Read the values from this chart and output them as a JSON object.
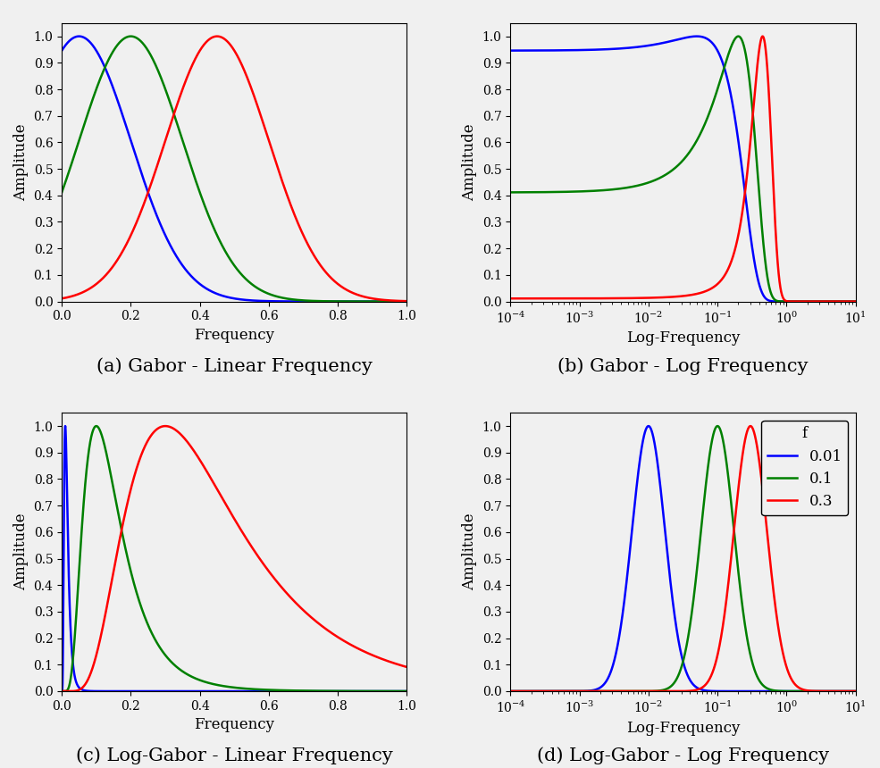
{
  "f0_values": [
    0.05,
    0.2,
    0.45
  ],
  "f0_log_gabor": [
    0.01,
    0.1,
    0.3
  ],
  "colors": [
    "blue",
    "green",
    "red"
  ],
  "legend_labels": [
    "0.01",
    "0.1",
    "0.3"
  ],
  "sigma_gabor": 0.15,
  "sigma_log_gabor": 0.55,
  "titles": [
    "(a) Gabor - Linear Frequency",
    "(b) Gabor - Log Frequency",
    "(c) Log-Gabor - Linear Frequency",
    "(d) Log-Gabor - Log Frequency"
  ],
  "xlabel_linear": "Frequency",
  "xlabel_log": "Log-Frequency",
  "ylabel": "Amplitude",
  "legend_title": "f",
  "ylim": [
    0,
    1.05
  ],
  "xlim_linear": [
    0,
    1
  ],
  "xlim_log": [
    0.0001,
    10
  ],
  "title_fontsize": 15,
  "label_fontsize": 12,
  "tick_fontsize": 10,
  "legend_fontsize": 12,
  "line_width": 1.8,
  "bg_color": "#f0f0f0"
}
